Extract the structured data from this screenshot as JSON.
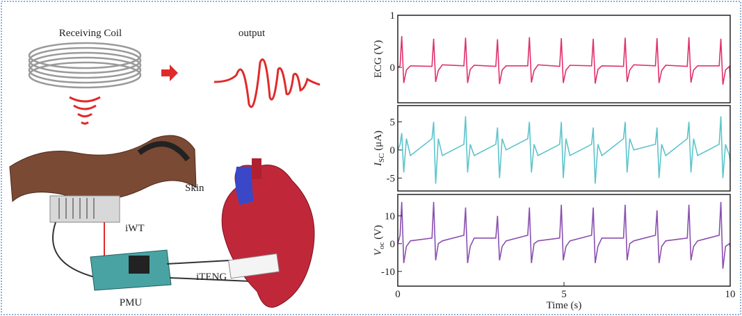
{
  "illustration": {
    "coil": "Receiving Coil",
    "output": "output",
    "skin": "Skin",
    "iwt": "iWT",
    "iteng": "iTENG",
    "pmu": "PMU"
  },
  "chart_data": [
    {
      "type": "line",
      "ylabel": "ECG (V)",
      "color": "#e0306a",
      "xlim": [
        0,
        10
      ],
      "ylim": [
        -0.68,
        1
      ],
      "yticks": [
        0,
        1
      ],
      "x": [
        0,
        0.07,
        0.12,
        0.18,
        0.26,
        0.38,
        1.03,
        1.08,
        1.14,
        1.22,
        1.34,
        1.99,
        2.04,
        2.1,
        2.18,
        2.3,
        2.95,
        3,
        3.06,
        3.14,
        3.26,
        3.91,
        3.96,
        4.02,
        4.1,
        4.22,
        4.87,
        4.92,
        4.98,
        5.06,
        5.18,
        5.83,
        5.88,
        5.94,
        6.02,
        6.14,
        6.79,
        6.84,
        6.9,
        6.98,
        7.1,
        7.75,
        7.8,
        7.86,
        7.94,
        8.06,
        8.71,
        8.76,
        8.82,
        8.9,
        9.02,
        9.67,
        9.72,
        9.78,
        9.86,
        9.98,
        10
      ],
      "values": [
        0,
        0.03,
        0.6,
        -0.3,
        -0.05,
        0.03,
        0.02,
        0.55,
        -0.28,
        -0.06,
        0.05,
        0.03,
        0.57,
        -0.3,
        -0.04,
        0.04,
        0.02,
        0.54,
        -0.32,
        -0.05,
        0.03,
        0.03,
        0.58,
        -0.29,
        -0.06,
        0.05,
        0.02,
        0.56,
        -0.3,
        -0.05,
        0.04,
        0.03,
        0.55,
        -0.31,
        -0.04,
        0.03,
        0.02,
        0.57,
        -0.28,
        -0.05,
        0.05,
        0.03,
        0.56,
        -0.3,
        -0.06,
        0.04,
        0.02,
        0.58,
        -0.29,
        -0.05,
        0.03,
        0.03,
        0.55,
        -0.33,
        -0.05,
        0.02,
        -0.2
      ]
    },
    {
      "type": "line",
      "ylabel": {
        "main": "I",
        "sub": "SC",
        "unit": " (μA)"
      },
      "color": "#5cc4cc",
      "xlim": [
        0,
        10
      ],
      "ylim": [
        -7.3,
        7.9
      ],
      "yticks": [
        -5,
        0,
        5
      ],
      "x": [
        0,
        0.07,
        0.12,
        0.18,
        0.26,
        0.38,
        1.03,
        1.08,
        1.14,
        1.22,
        1.34,
        1.99,
        2.04,
        2.1,
        2.18,
        2.3,
        2.95,
        3,
        3.06,
        3.14,
        3.26,
        3.91,
        3.96,
        4.02,
        4.1,
        4.22,
        4.87,
        4.92,
        4.98,
        5.06,
        5.18,
        5.83,
        5.88,
        5.94,
        6.02,
        6.14,
        6.79,
        6.84,
        6.9,
        6.98,
        7.1,
        7.75,
        7.8,
        7.86,
        7.94,
        8.06,
        8.71,
        8.76,
        8.82,
        8.9,
        9.02,
        9.67,
        9.72,
        9.78,
        9.86,
        9.98,
        10
      ],
      "values": [
        0,
        1,
        3,
        -4,
        2,
        -1,
        2,
        5,
        -6,
        2,
        -1,
        1,
        6,
        -4,
        1,
        -1,
        1,
        4,
        -5,
        2,
        0,
        2,
        5,
        -4,
        1,
        -1,
        1,
        5,
        -5,
        2,
        -1,
        1,
        4,
        -6,
        1,
        -1,
        2,
        5,
        -4,
        2,
        0,
        1,
        4,
        -5,
        1,
        -1,
        2,
        5,
        -4,
        2,
        -1,
        1,
        6,
        -5,
        1,
        -1,
        -2
      ]
    },
    {
      "type": "line",
      "ylabel": {
        "main": "V",
        "sub": "oc",
        "unit": " (V)"
      },
      "color": "#8a4fb0",
      "xlim": [
        0,
        10
      ],
      "ylim": [
        -15.3,
        17.7
      ],
      "yticks": [
        -10,
        0,
        10
      ],
      "xticks": [
        0,
        5,
        10
      ],
      "xlabel": "Time (s)",
      "x": [
        0,
        0.07,
        0.12,
        0.18,
        0.26,
        0.38,
        1.03,
        1.08,
        1.14,
        1.22,
        1.34,
        1.99,
        2.04,
        2.1,
        2.18,
        2.3,
        2.95,
        3,
        3.06,
        3.14,
        3.26,
        3.91,
        3.96,
        4.02,
        4.1,
        4.22,
        4.87,
        4.92,
        4.98,
        5.06,
        5.18,
        5.83,
        5.88,
        5.94,
        6.02,
        6.14,
        6.79,
        6.84,
        6.9,
        6.98,
        7.1,
        7.75,
        7.8,
        7.86,
        7.94,
        8.06,
        8.71,
        8.76,
        8.82,
        8.9,
        9.02,
        9.67,
        9.72,
        9.78,
        9.86,
        9.98,
        10
      ],
      "values": [
        0,
        3,
        15,
        -7,
        -1,
        1,
        2,
        15,
        -6,
        0,
        1,
        3,
        13,
        -7,
        -1,
        2,
        2,
        10,
        -6,
        -1,
        1,
        3,
        13,
        -7,
        0,
        1,
        2,
        14,
        -6,
        -1,
        1,
        3,
        13,
        -7,
        -1,
        2,
        2,
        14,
        -6,
        0,
        1,
        3,
        12,
        -7,
        -1,
        1,
        2,
        14,
        -6,
        -1,
        1,
        3,
        15,
        -9,
        -1,
        0,
        -1
      ]
    }
  ]
}
